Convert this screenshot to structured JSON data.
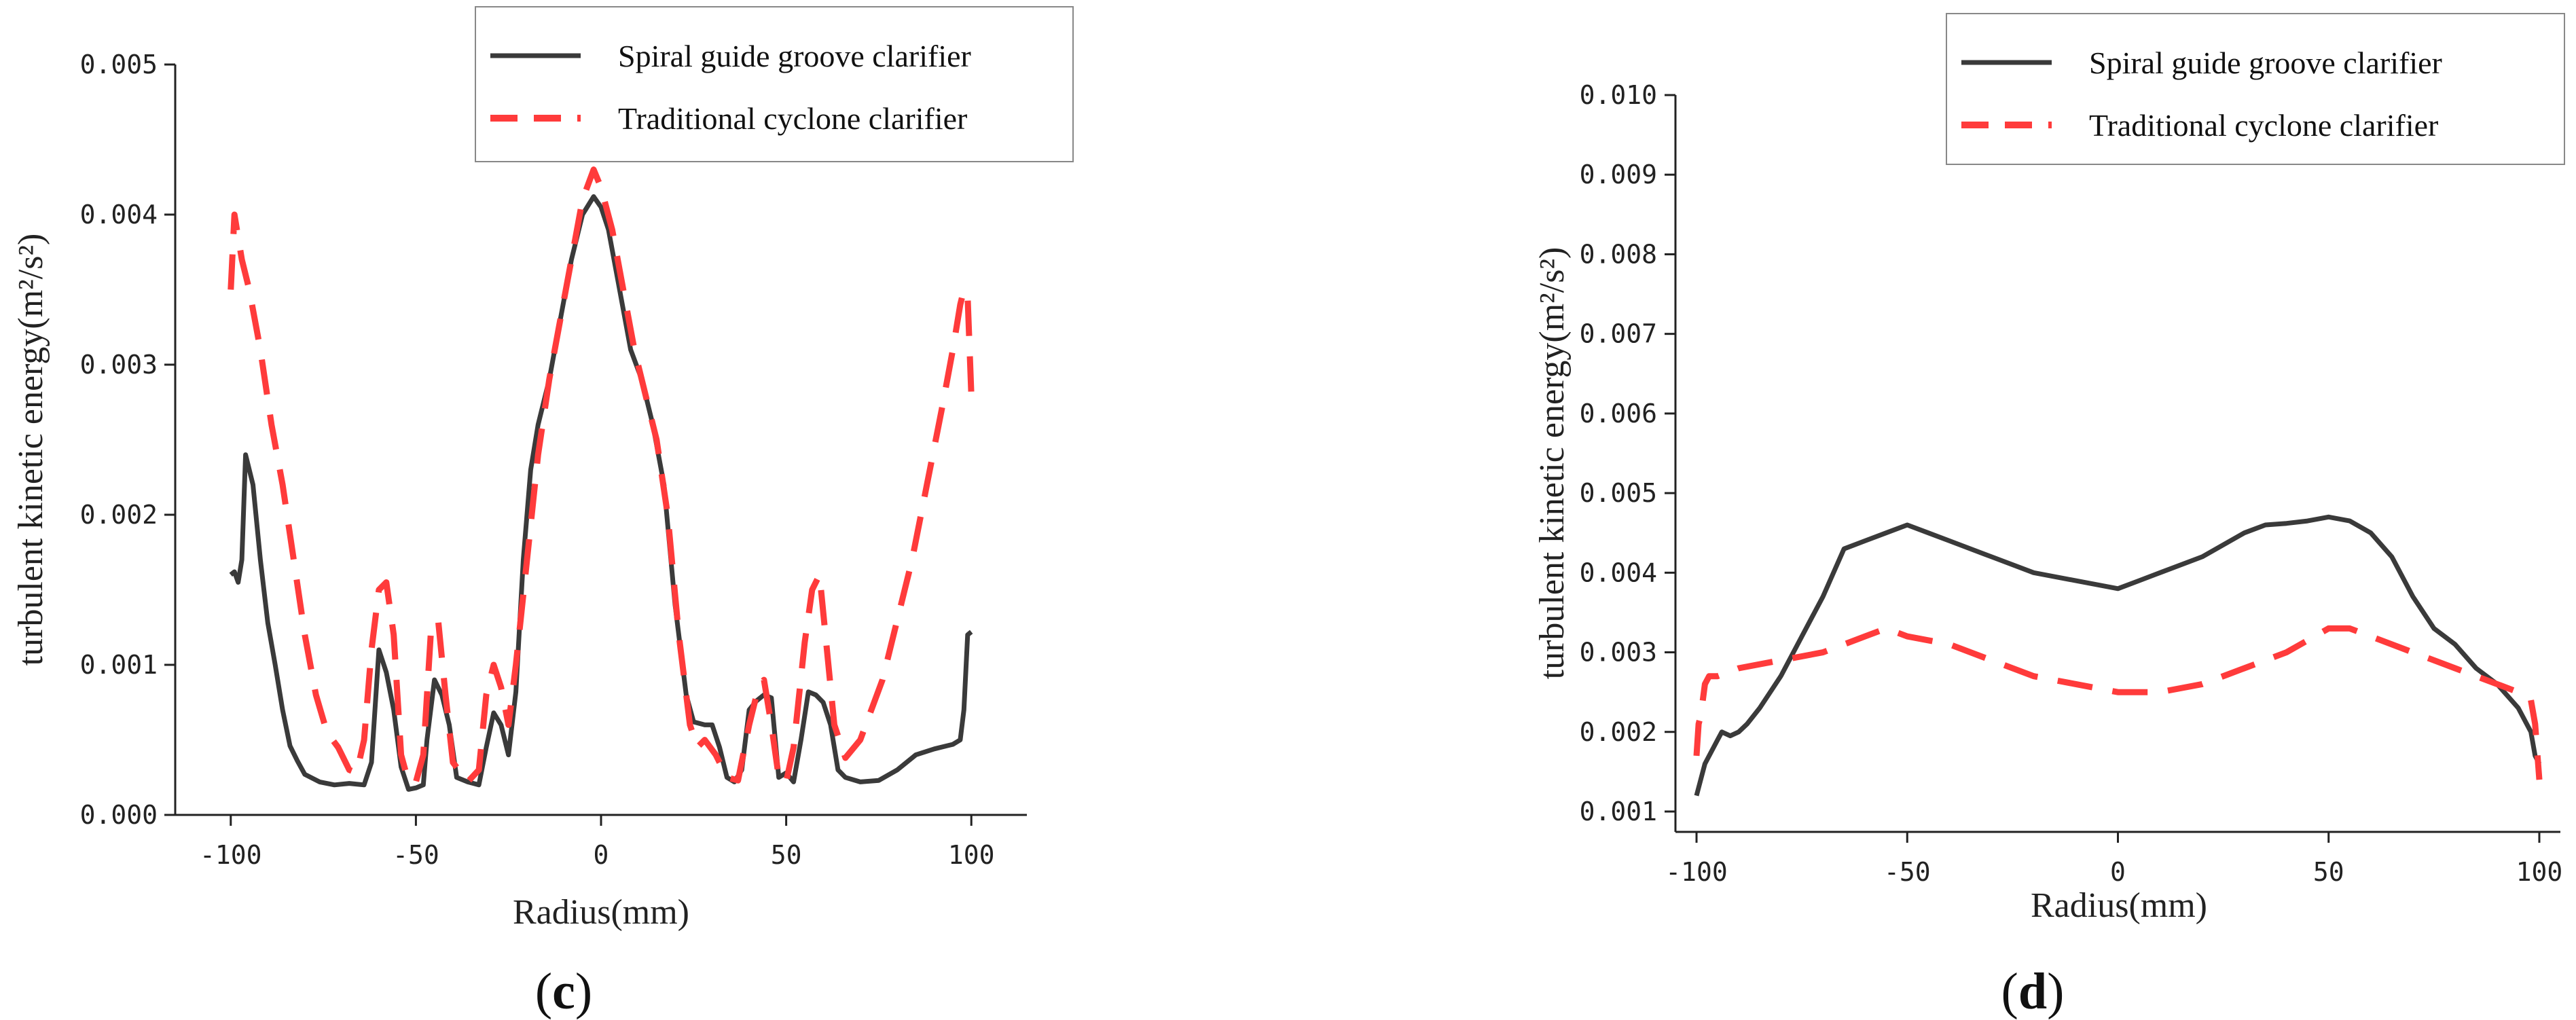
{
  "chart_data": [
    {
      "type": "line",
      "panel_label": "c",
      "xlabel": "Radius(mm)",
      "ylabel": "turbulent kinetic energy(m²/s²)",
      "xlim": [
        -115,
        115
      ],
      "ylim": [
        0.0,
        0.005
      ],
      "x_ticks": [
        -100,
        -50,
        0,
        50,
        100
      ],
      "x_tick_labels": [
        "-100",
        "-50",
        "0",
        "50",
        "100"
      ],
      "y_ticks": [
        0.0,
        0.001,
        0.002,
        0.003,
        0.004,
        0.005
      ],
      "y_tick_labels": [
        "0.000",
        "0.001",
        "0.002",
        "0.003",
        "0.004",
        "0.005"
      ],
      "legend_position": "top-right",
      "series": [
        {
          "name": "Spiral guide groove clarifier",
          "color": "#3a3a3a",
          "style": "solid",
          "points": [
            [
              -100,
              0.0016
            ],
            [
              -99,
              0.00162
            ],
            [
              -98,
              0.00155
            ],
            [
              -97,
              0.0017
            ],
            [
              -96,
              0.0024
            ],
            [
              -94,
              0.0022
            ],
            [
              -92,
              0.0017
            ],
            [
              -90,
              0.00128
            ],
            [
              -88,
              0.001
            ],
            [
              -86,
              0.0007
            ],
            [
              -84,
              0.00046
            ],
            [
              -82,
              0.00036
            ],
            [
              -80,
              0.00027
            ],
            [
              -76,
              0.00022
            ],
            [
              -72,
              0.0002
            ],
            [
              -68,
              0.00021
            ],
            [
              -64,
              0.0002
            ],
            [
              -62,
              0.00035
            ],
            [
              -60,
              0.0011
            ],
            [
              -58,
              0.00095
            ],
            [
              -56,
              0.0007
            ],
            [
              -54,
              0.00032
            ],
            [
              -52,
              0.00017
            ],
            [
              -50,
              0.00018
            ],
            [
              -48,
              0.0002
            ],
            [
              -47,
              0.0005
            ],
            [
              -45,
              0.0009
            ],
            [
              -43,
              0.0008
            ],
            [
              -41,
              0.0006
            ],
            [
              -39,
              0.00025
            ],
            [
              -36,
              0.00022
            ],
            [
              -33,
              0.0002
            ],
            [
              -31,
              0.00045
            ],
            [
              -29,
              0.00068
            ],
            [
              -27,
              0.0006
            ],
            [
              -25,
              0.0004
            ],
            [
              -23,
              0.00082
            ],
            [
              -21,
              0.0017
            ],
            [
              -19,
              0.0023
            ],
            [
              -17,
              0.0026
            ],
            [
              -14,
              0.0029
            ],
            [
              -11,
              0.0033
            ],
            [
              -8,
              0.0037
            ],
            [
              -5,
              0.004
            ],
            [
              -2,
              0.00412
            ],
            [
              0,
              0.00405
            ],
            [
              2,
              0.0039
            ],
            [
              5,
              0.0035
            ],
            [
              8,
              0.0031
            ],
            [
              11,
              0.0029
            ],
            [
              14,
              0.0026
            ],
            [
              17,
              0.0022
            ],
            [
              20,
              0.0014
            ],
            [
              23,
              0.0008
            ],
            [
              25,
              0.00062
            ],
            [
              28,
              0.0006
            ],
            [
              30,
              0.0006
            ],
            [
              32,
              0.00045
            ],
            [
              34,
              0.00025
            ],
            [
              36,
              0.00022
            ],
            [
              38,
              0.0003
            ],
            [
              40,
              0.0007
            ],
            [
              42,
              0.00076
            ],
            [
              44,
              0.0008
            ],
            [
              46,
              0.00078
            ],
            [
              48,
              0.00025
            ],
            [
              50,
              0.00028
            ],
            [
              52,
              0.00022
            ],
            [
              54,
              0.0005
            ],
            [
              56,
              0.00082
            ],
            [
              58,
              0.0008
            ],
            [
              60,
              0.00075
            ],
            [
              62,
              0.0006
            ],
            [
              64,
              0.0003
            ],
            [
              66,
              0.00025
            ],
            [
              70,
              0.00022
            ],
            [
              75,
              0.00023
            ],
            [
              80,
              0.0003
            ],
            [
              85,
              0.0004
            ],
            [
              90,
              0.00044
            ],
            [
              95,
              0.00047
            ],
            [
              97,
              0.0005
            ],
            [
              98,
              0.0007
            ],
            [
              99,
              0.0012
            ],
            [
              100,
              0.00122
            ]
          ]
        },
        {
          "name": "Traditional cyclone clarifier",
          "color": "#ff3b3b",
          "style": "dashed",
          "points": [
            [
              -100,
              0.0035
            ],
            [
              -99,
              0.004
            ],
            [
              -97,
              0.0037
            ],
            [
              -95,
              0.0035
            ],
            [
              -92,
              0.0031
            ],
            [
              -89,
              0.0026
            ],
            [
              -86,
              0.0022
            ],
            [
              -83,
              0.0017
            ],
            [
              -80,
              0.0012
            ],
            [
              -77,
              0.0008
            ],
            [
              -74,
              0.00055
            ],
            [
              -71,
              0.00045
            ],
            [
              -68,
              0.0003
            ],
            [
              -66,
              0.00028
            ],
            [
              -64,
              0.0005
            ],
            [
              -62,
              0.0011
            ],
            [
              -60,
              0.0015
            ],
            [
              -58,
              0.00155
            ],
            [
              -56,
              0.0012
            ],
            [
              -54,
              0.0004
            ],
            [
              -52,
              0.00022
            ],
            [
              -50,
              0.00022
            ],
            [
              -48,
              0.0004
            ],
            [
              -46,
              0.0012
            ],
            [
              -44,
              0.0013
            ],
            [
              -42,
              0.0008
            ],
            [
              -40,
              0.00035
            ],
            [
              -36,
              0.00022
            ],
            [
              -33,
              0.0003
            ],
            [
              -31,
              0.0008
            ],
            [
              -29,
              0.001
            ],
            [
              -27,
              0.00085
            ],
            [
              -25,
              0.0006
            ],
            [
              -23,
              0.001
            ],
            [
              -20,
              0.0017
            ],
            [
              -17,
              0.0024
            ],
            [
              -14,
              0.0029
            ],
            [
              -11,
              0.0033
            ],
            [
              -8,
              0.0037
            ],
            [
              -5,
              0.0041
            ],
            [
              -2,
              0.0043
            ],
            [
              0,
              0.00418
            ],
            [
              3,
              0.0039
            ],
            [
              6,
              0.0035
            ],
            [
              9,
              0.0031
            ],
            [
              12,
              0.0028
            ],
            [
              15,
              0.0025
            ],
            [
              18,
              0.002
            ],
            [
              21,
              0.0012
            ],
            [
              24,
              0.0006
            ],
            [
              26,
              0.00045
            ],
            [
              28,
              0.0005
            ],
            [
              31,
              0.0004
            ],
            [
              34,
              0.00025
            ],
            [
              37,
              0.00023
            ],
            [
              40,
              0.0006
            ],
            [
              42,
              0.0008
            ],
            [
              44,
              0.0009
            ],
            [
              46,
              0.0006
            ],
            [
              48,
              0.00025
            ],
            [
              50,
              0.00022
            ],
            [
              52,
              0.00045
            ],
            [
              55,
              0.00115
            ],
            [
              57,
              0.0015
            ],
            [
              59,
              0.0016
            ],
            [
              61,
              0.0011
            ],
            [
              63,
              0.0006
            ],
            [
              66,
              0.00038
            ],
            [
              70,
              0.0005
            ],
            [
              73,
              0.0007
            ],
            [
              76,
              0.0009
            ],
            [
              80,
              0.0013
            ],
            [
              84,
              0.0017
            ],
            [
              88,
              0.0022
            ],
            [
              92,
              0.0027
            ],
            [
              95,
              0.0031
            ],
            [
              97,
              0.0034
            ],
            [
              98,
              0.0035
            ],
            [
              99,
              0.00345
            ],
            [
              100,
              0.0028
            ]
          ]
        }
      ]
    },
    {
      "type": "line",
      "panel_label": "d",
      "xlabel": "Radius(mm)",
      "ylabel": "turbulent kinetic energy(m²/s²)",
      "xlim": [
        -105,
        105
      ],
      "ylim": [
        0.001,
        0.01
      ],
      "x_ticks": [
        -100,
        -50,
        0,
        50,
        100
      ],
      "x_tick_labels": [
        "-100",
        "-50",
        "0",
        "50",
        "100"
      ],
      "y_ticks": [
        0.001,
        0.002,
        0.003,
        0.004,
        0.005,
        0.006,
        0.007,
        0.008,
        0.009,
        0.01
      ],
      "y_tick_labels": [
        "0.001",
        "0.002",
        "0.003",
        "0.004",
        "0.005",
        "0.006",
        "0.007",
        "0.008",
        "0.009",
        "0.010"
      ],
      "legend_position": "top-right",
      "series": [
        {
          "name": "Spiral guide groove clarifier",
          "color": "#3a3a3a",
          "style": "solid",
          "points": [
            [
              -100,
              0.0012
            ],
            [
              -99,
              0.0014
            ],
            [
              -98,
              0.0016
            ],
            [
              -96,
              0.0018
            ],
            [
              -95,
              0.0019
            ],
            [
              -94,
              0.002
            ],
            [
              -92,
              0.00195
            ],
            [
              -90,
              0.002
            ],
            [
              -88,
              0.0021
            ],
            [
              -85,
              0.0023
            ],
            [
              -80,
              0.0027
            ],
            [
              -75,
              0.0032
            ],
            [
              -70,
              0.0037
            ],
            [
              -65,
              0.0043
            ],
            [
              -60,
              0.0044
            ],
            [
              -55,
              0.0045
            ],
            [
              -50,
              0.0046
            ],
            [
              -45,
              0.0045
            ],
            [
              -40,
              0.0044
            ],
            [
              -30,
              0.0042
            ],
            [
              -20,
              0.004
            ],
            [
              -10,
              0.0039
            ],
            [
              -5,
              0.00385
            ],
            [
              0,
              0.0038
            ],
            [
              5,
              0.0039
            ],
            [
              10,
              0.004
            ],
            [
              20,
              0.0042
            ],
            [
              30,
              0.0045
            ],
            [
              35,
              0.0046
            ],
            [
              40,
              0.00462
            ],
            [
              45,
              0.00465
            ],
            [
              50,
              0.0047
            ],
            [
              55,
              0.00465
            ],
            [
              60,
              0.0045
            ],
            [
              65,
              0.0042
            ],
            [
              70,
              0.0037
            ],
            [
              75,
              0.0033
            ],
            [
              80,
              0.0031
            ],
            [
              85,
              0.0028
            ],
            [
              90,
              0.0026
            ],
            [
              95,
              0.0023
            ],
            [
              98,
              0.002
            ],
            [
              99,
              0.0017
            ],
            [
              100,
              0.0016
            ]
          ]
        },
        {
          "name": "Traditional cyclone clarifier",
          "color": "#ff3b3b",
          "style": "dashed",
          "points": [
            [
              -100,
              0.0017
            ],
            [
              -99.5,
              0.0021
            ],
            [
              -99,
              0.0022
            ],
            [
              -98,
              0.0026
            ],
            [
              -97,
              0.0027
            ],
            [
              -95,
              0.0027
            ],
            [
              -90,
              0.0028
            ],
            [
              -80,
              0.0029
            ],
            [
              -70,
              0.003
            ],
            [
              -60,
              0.0032
            ],
            [
              -55,
              0.0033
            ],
            [
              -50,
              0.0032
            ],
            [
              -40,
              0.0031
            ],
            [
              -30,
              0.0029
            ],
            [
              -20,
              0.0027
            ],
            [
              -10,
              0.0026
            ],
            [
              0,
              0.0025
            ],
            [
              10,
              0.0025
            ],
            [
              20,
              0.0026
            ],
            [
              30,
              0.0028
            ],
            [
              40,
              0.003
            ],
            [
              50,
              0.0033
            ],
            [
              55,
              0.0033
            ],
            [
              60,
              0.0032
            ],
            [
              70,
              0.003
            ],
            [
              80,
              0.0028
            ],
            [
              90,
              0.0026
            ],
            [
              95,
              0.0025
            ],
            [
              98,
              0.0024
            ],
            [
              99,
              0.0021
            ],
            [
              100,
              0.0014
            ]
          ]
        }
      ]
    }
  ]
}
